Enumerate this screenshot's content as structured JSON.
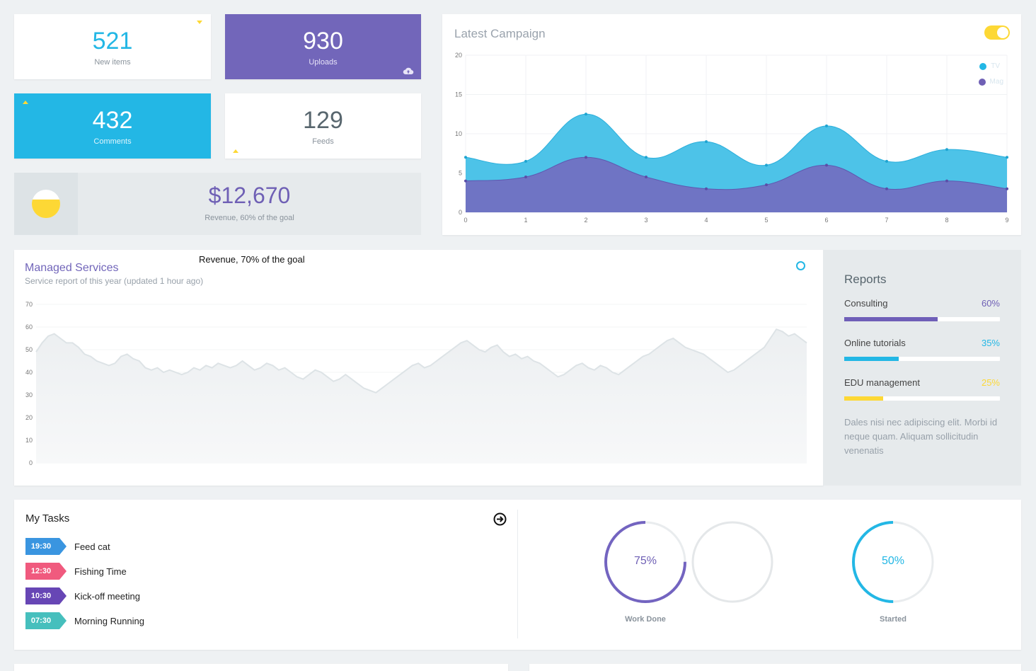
{
  "stats": {
    "new_items": {
      "value": "521",
      "label": "New items"
    },
    "uploads": {
      "value": "930",
      "label": "Uploads"
    },
    "comments": {
      "value": "432",
      "label": "Comments"
    },
    "feeds": {
      "value": "129",
      "label": "Feeds"
    }
  },
  "revenue": {
    "value": "$12,670",
    "label": "Revenue, 60% of the goal",
    "pie_fraction": 0.6
  },
  "campaign": {
    "title": "Latest Campaign",
    "toggle_on": true
  },
  "chart_data": [
    {
      "type": "area",
      "title": "Latest Campaign",
      "x": [
        0,
        1,
        2,
        3,
        4,
        5,
        6,
        7,
        8,
        9
      ],
      "ylim": [
        0,
        20
      ],
      "yticks": [
        0,
        5,
        10,
        15,
        20
      ],
      "series": [
        {
          "name": "TV",
          "values": [
            7,
            6.5,
            12.5,
            7,
            9,
            6,
            11,
            6.5,
            8,
            7
          ],
          "color": "#4dc3e8"
        },
        {
          "name": "Mag",
          "values": [
            4,
            4.5,
            7,
            4.5,
            3,
            3.5,
            6,
            3,
            4,
            3
          ],
          "color": "#6f74c4"
        }
      ],
      "legend": "top-right",
      "grid": true
    },
    {
      "type": "area",
      "title": "Managed Services",
      "ylim": [
        0,
        70
      ],
      "yticks": [
        0,
        10,
        20,
        30,
        40,
        50,
        60,
        70
      ],
      "series": [
        {
          "name": "",
          "values": [
            49,
            53,
            56,
            57,
            55,
            53,
            53,
            51,
            48,
            47,
            45,
            44,
            43,
            44,
            47,
            48,
            46,
            45,
            42,
            41,
            42,
            40,
            41,
            40,
            39,
            40,
            42,
            41,
            43,
            42,
            44,
            43,
            42,
            43,
            45,
            43,
            41,
            42,
            44,
            43,
            41,
            42,
            40,
            38,
            37,
            39,
            41,
            40,
            38,
            36,
            37,
            39,
            37,
            35,
            33,
            32,
            31,
            33,
            35,
            37,
            39,
            41,
            43,
            44,
            42,
            43,
            45,
            47,
            49,
            51,
            53,
            54,
            52,
            50,
            49,
            51,
            52,
            49,
            47,
            48,
            46,
            47,
            45,
            44,
            42,
            40,
            38,
            39,
            41,
            43,
            44,
            42,
            41,
            43,
            42,
            40,
            39,
            41,
            43,
            45,
            47,
            48,
            50,
            52,
            54,
            55,
            53,
            51,
            50,
            49,
            48,
            46,
            44,
            42,
            40,
            41,
            43,
            45,
            47,
            49,
            51,
            55,
            59,
            58,
            56,
            57,
            55,
            53
          ]
        }
      ],
      "grid": true
    }
  ],
  "legend": {
    "tv": "TV",
    "mag": "Mag"
  },
  "managed": {
    "title": "Managed Services",
    "subtitle": "Service report of this year (updated 1 hour ago)",
    "floating_text": "Revenue, 70% of the goal"
  },
  "reports": {
    "title": "Reports",
    "items": [
      {
        "label": "Consulting",
        "pct": "60%",
        "value": 0.6,
        "color": "#6f5fb8"
      },
      {
        "label": "Online tutorials",
        "pct": "35%",
        "value": 0.35,
        "color": "#23b7e5"
      },
      {
        "label": "EDU management",
        "pct": "25%",
        "value": 0.25,
        "color": "#fdd835"
      }
    ],
    "note": "Dales nisi nec adipiscing elit. Morbi id neque quam. Aliquam sollicitudin venenatis"
  },
  "tasks": {
    "title": "My Tasks",
    "items": [
      {
        "time": "19:30",
        "text": "Feed cat",
        "color": "#3a95e0"
      },
      {
        "time": "12:30",
        "text": "Fishing Time",
        "color": "#f05a7e"
      },
      {
        "time": "10:30",
        "text": "Kick-off meeting",
        "color": "#6746b5"
      },
      {
        "time": "07:30",
        "text": "Morning Running",
        "color": "#46bfbd"
      }
    ]
  },
  "progress": {
    "work_done": {
      "pct": "75%",
      "value": 0.75,
      "label": "Work Done",
      "color": "#7364c0"
    },
    "started": {
      "pct": "50%",
      "value": 0.5,
      "label": "Started",
      "color": "#23b7e5"
    }
  }
}
